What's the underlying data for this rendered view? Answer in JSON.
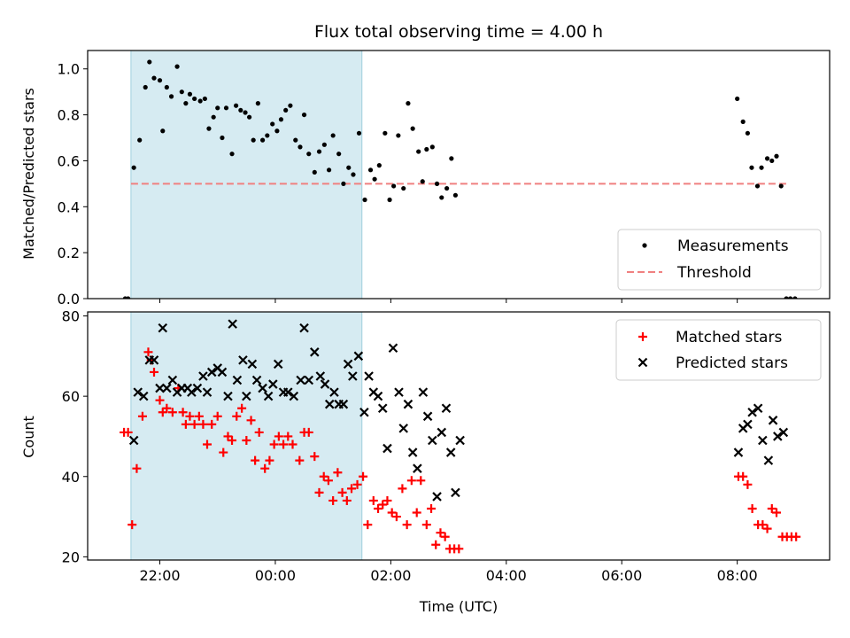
{
  "chart_data": [
    {
      "type": "scatter",
      "title": "Flux total observing time = 4.00 h",
      "ylabel": "Matched/Predicted stars",
      "ylim": [
        0,
        1.08
      ],
      "yticks": [
        0.0,
        0.2,
        0.4,
        0.6,
        0.8,
        1.0
      ],
      "ytick_labels": [
        "0.0",
        "0.2",
        "0.4",
        "0.6",
        "0.8",
        "1.0"
      ],
      "xlim": [
        20.75,
        33.6
      ],
      "xticks": [
        22,
        24,
        26,
        28,
        30,
        32
      ],
      "shaded_interval": [
        21.5,
        25.5
      ],
      "legend_placement": "lower-right",
      "threshold": {
        "name": "Threshold",
        "value": 0.5,
        "x_range": [
          21.5,
          32.9
        ],
        "color": "#f08080"
      },
      "series": [
        {
          "name": "Measurements",
          "color": "#000000",
          "marker": "dot",
          "points": [
            [
              21.4,
              0.0
            ],
            [
              21.45,
              0.0
            ],
            [
              21.55,
              0.57
            ],
            [
              21.65,
              0.69
            ],
            [
              21.75,
              0.92
            ],
            [
              21.82,
              1.03
            ],
            [
              21.9,
              0.96
            ],
            [
              22.0,
              0.95
            ],
            [
              22.05,
              0.73
            ],
            [
              22.12,
              0.92
            ],
            [
              22.2,
              0.88
            ],
            [
              22.3,
              1.01
            ],
            [
              22.38,
              0.9
            ],
            [
              22.45,
              0.85
            ],
            [
              22.52,
              0.89
            ],
            [
              22.6,
              0.87
            ],
            [
              22.7,
              0.86
            ],
            [
              22.78,
              0.87
            ],
            [
              22.85,
              0.74
            ],
            [
              22.93,
              0.79
            ],
            [
              23.0,
              0.83
            ],
            [
              23.08,
              0.7
            ],
            [
              23.15,
              0.83
            ],
            [
              23.25,
              0.63
            ],
            [
              23.32,
              0.84
            ],
            [
              23.4,
              0.82
            ],
            [
              23.48,
              0.81
            ],
            [
              23.55,
              0.79
            ],
            [
              23.62,
              0.69
            ],
            [
              23.7,
              0.85
            ],
            [
              23.78,
              0.69
            ],
            [
              23.86,
              0.71
            ],
            [
              23.95,
              0.76
            ],
            [
              24.03,
              0.73
            ],
            [
              24.1,
              0.78
            ],
            [
              24.18,
              0.82
            ],
            [
              24.26,
              0.84
            ],
            [
              24.35,
              0.69
            ],
            [
              24.43,
              0.66
            ],
            [
              24.5,
              0.8
            ],
            [
              24.58,
              0.63
            ],
            [
              24.68,
              0.55
            ],
            [
              24.76,
              0.64
            ],
            [
              24.85,
              0.67
            ],
            [
              24.93,
              0.56
            ],
            [
              25.0,
              0.71
            ],
            [
              25.1,
              0.63
            ],
            [
              25.18,
              0.5
            ],
            [
              25.27,
              0.57
            ],
            [
              25.35,
              0.54
            ],
            [
              25.45,
              0.72
            ],
            [
              25.55,
              0.43
            ],
            [
              25.65,
              0.56
            ],
            [
              25.72,
              0.52
            ],
            [
              25.8,
              0.58
            ],
            [
              25.9,
              0.72
            ],
            [
              25.98,
              0.43
            ],
            [
              26.05,
              0.49
            ],
            [
              26.13,
              0.71
            ],
            [
              26.22,
              0.48
            ],
            [
              26.3,
              0.85
            ],
            [
              26.38,
              0.74
            ],
            [
              26.48,
              0.64
            ],
            [
              26.55,
              0.51
            ],
            [
              26.62,
              0.65
            ],
            [
              26.72,
              0.66
            ],
            [
              26.8,
              0.5
            ],
            [
              26.88,
              0.44
            ],
            [
              26.97,
              0.48
            ],
            [
              27.05,
              0.61
            ],
            [
              27.12,
              0.45
            ],
            [
              32.0,
              0.87
            ],
            [
              32.1,
              0.77
            ],
            [
              32.18,
              0.72
            ],
            [
              32.25,
              0.57
            ],
            [
              32.35,
              0.49
            ],
            [
              32.42,
              0.57
            ],
            [
              32.52,
              0.61
            ],
            [
              32.6,
              0.6
            ],
            [
              32.68,
              0.62
            ],
            [
              32.76,
              0.49
            ],
            [
              32.85,
              0.0
            ],
            [
              32.92,
              0.0
            ],
            [
              33.0,
              0.0
            ]
          ]
        }
      ]
    },
    {
      "type": "scatter",
      "xlabel": "Time (UTC)",
      "ylabel": "Count",
      "ylim": [
        19.2,
        81
      ],
      "yticks": [
        20,
        40,
        60,
        80
      ],
      "ytick_labels": [
        "20",
        "40",
        "60",
        "80"
      ],
      "xlim": [
        20.75,
        33.6
      ],
      "xticks": [
        22,
        24,
        26,
        28,
        30,
        32
      ],
      "xtick_labels": [
        "22:00",
        "00:00",
        "02:00",
        "04:00",
        "06:00",
        "08:00"
      ],
      "shaded_interval": [
        21.5,
        25.5
      ],
      "legend_placement": "upper-right",
      "series": [
        {
          "name": "Matched stars",
          "color": "#ff0000",
          "marker": "plus",
          "points": [
            [
              21.38,
              51
            ],
            [
              21.45,
              51
            ],
            [
              21.52,
              28
            ],
            [
              21.6,
              42
            ],
            [
              21.7,
              55
            ],
            [
              21.8,
              71
            ],
            [
              21.85,
              69
            ],
            [
              21.9,
              66
            ],
            [
              22.0,
              59
            ],
            [
              22.05,
              56
            ],
            [
              22.12,
              57
            ],
            [
              22.22,
              56
            ],
            [
              22.32,
              62
            ],
            [
              22.4,
              56
            ],
            [
              22.45,
              53
            ],
            [
              22.52,
              55
            ],
            [
              22.6,
              53
            ],
            [
              22.68,
              55
            ],
            [
              22.75,
              53
            ],
            [
              22.82,
              48
            ],
            [
              22.9,
              53
            ],
            [
              23.0,
              55
            ],
            [
              23.1,
              46
            ],
            [
              23.18,
              50
            ],
            [
              23.25,
              49
            ],
            [
              23.33,
              55
            ],
            [
              23.42,
              57
            ],
            [
              23.5,
              49
            ],
            [
              23.58,
              54
            ],
            [
              23.65,
              44
            ],
            [
              23.72,
              51
            ],
            [
              23.82,
              42
            ],
            [
              23.9,
              44
            ],
            [
              23.98,
              48
            ],
            [
              24.06,
              50
            ],
            [
              24.14,
              48
            ],
            [
              24.22,
              50
            ],
            [
              24.3,
              48
            ],
            [
              24.42,
              44
            ],
            [
              24.5,
              51
            ],
            [
              24.58,
              51
            ],
            [
              24.68,
              45
            ],
            [
              24.76,
              36
            ],
            [
              24.84,
              40
            ],
            [
              24.92,
              39
            ],
            [
              25.0,
              34
            ],
            [
              25.08,
              41
            ],
            [
              25.16,
              36
            ],
            [
              25.24,
              34
            ],
            [
              25.32,
              37
            ],
            [
              25.42,
              38
            ],
            [
              25.52,
              40
            ],
            [
              25.6,
              28
            ],
            [
              25.7,
              34
            ],
            [
              25.78,
              32
            ],
            [
              25.86,
              33
            ],
            [
              25.94,
              34
            ],
            [
              26.02,
              31
            ],
            [
              26.1,
              30
            ],
            [
              26.2,
              37
            ],
            [
              26.28,
              28
            ],
            [
              26.36,
              39
            ],
            [
              26.45,
              31
            ],
            [
              26.52,
              39
            ],
            [
              26.62,
              28
            ],
            [
              26.7,
              32
            ],
            [
              26.78,
              23
            ],
            [
              26.86,
              26
            ],
            [
              26.94,
              25
            ],
            [
              27.02,
              22
            ],
            [
              27.1,
              22
            ],
            [
              27.18,
              22
            ],
            [
              32.02,
              40
            ],
            [
              32.1,
              40
            ],
            [
              32.18,
              38
            ],
            [
              32.26,
              32
            ],
            [
              32.36,
              28
            ],
            [
              32.44,
              28
            ],
            [
              32.52,
              27
            ],
            [
              32.6,
              32
            ],
            [
              32.68,
              31
            ],
            [
              32.78,
              25
            ],
            [
              32.86,
              25
            ],
            [
              32.94,
              25
            ],
            [
              33.02,
              25
            ]
          ]
        },
        {
          "name": "Predicted stars",
          "color": "#000000",
          "marker": "cross",
          "points": [
            [
              21.55,
              49
            ],
            [
              21.62,
              61
            ],
            [
              21.72,
              60
            ],
            [
              21.82,
              69
            ],
            [
              21.9,
              69
            ],
            [
              22.0,
              62
            ],
            [
              22.05,
              77
            ],
            [
              22.12,
              62
            ],
            [
              22.22,
              64
            ],
            [
              22.3,
              61
            ],
            [
              22.38,
              62
            ],
            [
              22.48,
              62
            ],
            [
              22.55,
              61
            ],
            [
              22.65,
              62
            ],
            [
              22.75,
              65
            ],
            [
              22.82,
              61
            ],
            [
              22.9,
              66
            ],
            [
              23.0,
              67
            ],
            [
              23.08,
              66
            ],
            [
              23.18,
              60
            ],
            [
              23.26,
              78
            ],
            [
              23.34,
              64
            ],
            [
              23.44,
              69
            ],
            [
              23.5,
              60
            ],
            [
              23.6,
              68
            ],
            [
              23.68,
              64
            ],
            [
              23.78,
              62
            ],
            [
              23.88,
              60
            ],
            [
              23.96,
              63
            ],
            [
              24.05,
              68
            ],
            [
              24.14,
              61
            ],
            [
              24.22,
              61
            ],
            [
              24.32,
              60
            ],
            [
              24.44,
              64
            ],
            [
              24.5,
              77
            ],
            [
              24.58,
              64
            ],
            [
              24.68,
              71
            ],
            [
              24.78,
              65
            ],
            [
              24.86,
              63
            ],
            [
              24.94,
              58
            ],
            [
              25.02,
              61
            ],
            [
              25.1,
              58
            ],
            [
              25.18,
              58
            ],
            [
              25.26,
              68
            ],
            [
              25.34,
              65
            ],
            [
              25.44,
              70
            ],
            [
              25.54,
              56
            ],
            [
              25.62,
              65
            ],
            [
              25.7,
              61
            ],
            [
              25.78,
              60
            ],
            [
              25.86,
              57
            ],
            [
              25.94,
              47
            ],
            [
              26.04,
              72
            ],
            [
              26.14,
              61
            ],
            [
              26.22,
              52
            ],
            [
              26.3,
              58
            ],
            [
              26.38,
              46
            ],
            [
              26.46,
              42
            ],
            [
              26.56,
              61
            ],
            [
              26.64,
              55
            ],
            [
              26.72,
              49
            ],
            [
              26.8,
              35
            ],
            [
              26.88,
              51
            ],
            [
              26.96,
              57
            ],
            [
              27.04,
              46
            ],
            [
              27.12,
              36
            ],
            [
              27.2,
              49
            ],
            [
              32.02,
              46
            ],
            [
              32.1,
              52
            ],
            [
              32.18,
              53
            ],
            [
              32.26,
              56
            ],
            [
              32.36,
              57
            ],
            [
              32.44,
              49
            ],
            [
              32.54,
              44
            ],
            [
              32.62,
              54
            ],
            [
              32.7,
              50
            ],
            [
              32.8,
              51
            ]
          ]
        }
      ]
    }
  ]
}
